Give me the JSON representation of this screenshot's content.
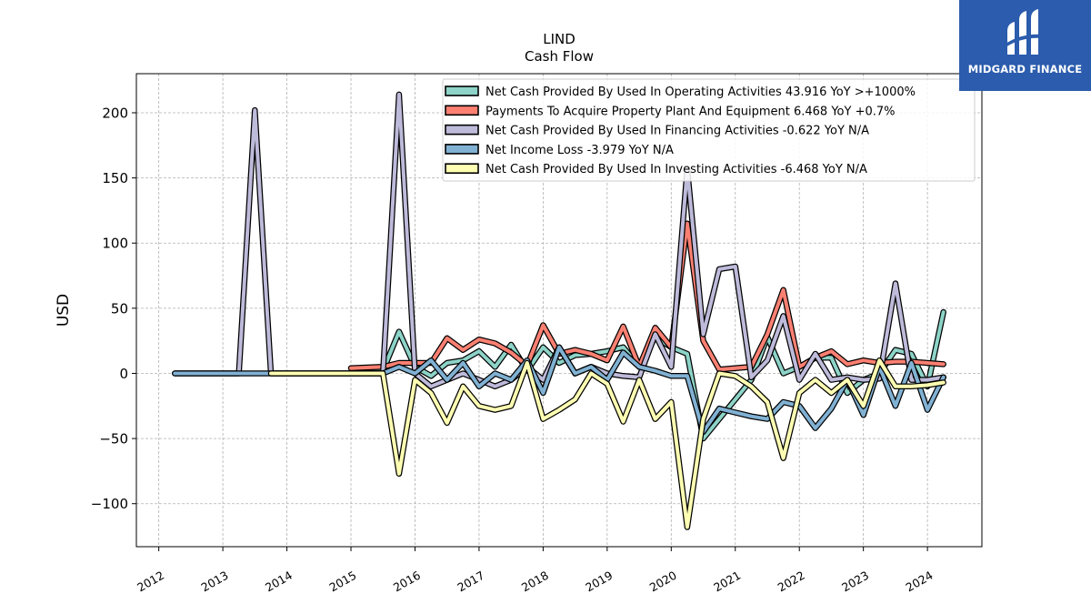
{
  "header": {
    "ticker": "LIND",
    "subtitle": "Cash Flow"
  },
  "brand": {
    "name": "MIDGARD FINANCE",
    "bg_color": "#2b5cad"
  },
  "chart_data": {
    "type": "line",
    "title": "LIND",
    "subtitle": "Cash Flow",
    "ylabel": "USD",
    "xlabel": "",
    "ylim": [
      -133,
      230
    ],
    "xlim": [
      2011.65,
      2024.85
    ],
    "yticks": [
      -100,
      -50,
      0,
      50,
      100,
      150,
      200
    ],
    "ytick_labels": [
      "−100",
      "−50",
      "0",
      "50",
      "100",
      "150",
      "200"
    ],
    "xticks": [
      2012,
      2013,
      2014,
      2015,
      2016,
      2017,
      2018,
      2019,
      2020,
      2021,
      2022,
      2023,
      2024
    ],
    "xtick_labels": [
      "2012",
      "2013",
      "2014",
      "2015",
      "2016",
      "2017",
      "2018",
      "2019",
      "2020",
      "2021",
      "2022",
      "2023",
      "2024"
    ],
    "grid": true,
    "legend_position": "top-right",
    "series": [
      {
        "name": "Net Cash Provided By Used In Operating Activities",
        "legend_label": "Net Cash Provided By Used In Operating Activities  43.916 YoY >+1000%",
        "color": "#8dd3c7",
        "x": [
          2015.0,
          2015.5,
          2015.75,
          2016.0,
          2016.25,
          2016.5,
          2016.75,
          2017.0,
          2017.25,
          2017.5,
          2017.75,
          2018.0,
          2018.25,
          2018.5,
          2018.75,
          2019.0,
          2019.25,
          2019.5,
          2019.75,
          2020.0,
          2020.25,
          2020.5,
          2020.75,
          2021.0,
          2021.25,
          2021.5,
          2021.75,
          2022.0,
          2022.25,
          2022.5,
          2022.75,
          2023.0,
          2023.25,
          2023.5,
          2023.75,
          2024.0,
          2024.25
        ],
        "y": [
          0,
          2,
          32,
          5,
          -2,
          8,
          10,
          17,
          5,
          22,
          2,
          20,
          8,
          14,
          15,
          17,
          20,
          5,
          28,
          20,
          15,
          -50,
          -35,
          -20,
          -5,
          28,
          0,
          5,
          12,
          12,
          -15,
          -5,
          0,
          18,
          15,
          -10,
          47
        ]
      },
      {
        "name": "Payments To Acquire Property Plant And Equipment",
        "legend_label": "Payments To Acquire Property Plant And Equipment  6.468 YoY +0.7%",
        "color": "#fb8072",
        "x": [
          2015.0,
          2015.5,
          2015.75,
          2016.0,
          2016.25,
          2016.5,
          2016.75,
          2017.0,
          2017.25,
          2017.5,
          2017.75,
          2018.0,
          2018.25,
          2018.5,
          2018.75,
          2019.0,
          2019.25,
          2019.5,
          2019.75,
          2020.0,
          2020.25,
          2020.5,
          2020.75,
          2021.0,
          2021.25,
          2021.5,
          2021.75,
          2022.0,
          2022.25,
          2022.5,
          2022.75,
          2023.0,
          2023.25,
          2023.5,
          2023.75,
          2024.0,
          2024.25
        ],
        "y": [
          4,
          5,
          8,
          8,
          8,
          27,
          18,
          26,
          23,
          16,
          6,
          37,
          15,
          18,
          15,
          10,
          36,
          5,
          35,
          20,
          115,
          25,
          3,
          4,
          5,
          30,
          64,
          5,
          12,
          17,
          7,
          10,
          8,
          9,
          9,
          8,
          7
        ]
      },
      {
        "name": "Net Cash Provided By Used In Financing Activities",
        "legend_label": "Net Cash Provided By Used In Financing Activities  -0.622 YoY N/A",
        "color": "#bebada",
        "x": [
          2012.25,
          2013.0,
          2013.25,
          2013.5,
          2013.75,
          2014.25,
          2015.0,
          2015.5,
          2015.75,
          2016.0,
          2016.25,
          2016.5,
          2016.75,
          2017.0,
          2017.25,
          2017.5,
          2017.75,
          2018.0,
          2018.25,
          2018.5,
          2018.75,
          2019.0,
          2019.25,
          2019.5,
          2019.75,
          2020.0,
          2020.25,
          2020.5,
          2020.75,
          2021.0,
          2021.25,
          2021.5,
          2021.75,
          2022.0,
          2022.25,
          2022.5,
          2022.75,
          2023.0,
          2023.25,
          2023.5,
          2023.75,
          2024.0,
          2024.25
        ],
        "y": [
          0,
          0,
          0,
          202,
          0,
          0,
          0,
          0,
          214,
          0,
          -10,
          -5,
          0,
          -5,
          -10,
          -5,
          5,
          -5,
          20,
          0,
          5,
          0,
          -2,
          -3,
          30,
          5,
          157,
          30,
          80,
          82,
          -3,
          10,
          44,
          -5,
          15,
          -5,
          -3,
          -5,
          -4,
          69,
          -5,
          -5,
          -3
        ]
      },
      {
        "name": "Net Income Loss",
        "legend_label": "Net Income Loss  -3.979 YoY N/A",
        "color": "#80b1d3",
        "x": [
          2012.25,
          2013.0,
          2014.0,
          2015.0,
          2015.5,
          2015.75,
          2016.0,
          2016.25,
          2016.5,
          2016.75,
          2017.0,
          2017.25,
          2017.5,
          2017.75,
          2018.0,
          2018.25,
          2018.5,
          2018.75,
          2019.0,
          2019.25,
          2019.5,
          2019.75,
          2020.0,
          2020.25,
          2020.5,
          2020.75,
          2021.0,
          2021.25,
          2021.5,
          2021.75,
          2022.0,
          2022.25,
          2022.5,
          2022.75,
          2023.0,
          2023.25,
          2023.5,
          2023.75,
          2024.0,
          2024.25
        ],
        "y": [
          0,
          0,
          0,
          0,
          0,
          5,
          0,
          10,
          -5,
          8,
          -10,
          0,
          -5,
          10,
          -15,
          20,
          0,
          5,
          -5,
          16,
          5,
          2,
          -2,
          -2,
          -45,
          -27,
          -30,
          -33,
          -35,
          -22,
          -25,
          -42,
          -27,
          -5,
          -32,
          5,
          -25,
          8,
          -28,
          -3
        ]
      },
      {
        "name": "Net Cash Provided By Used In Investing Activities",
        "legend_label": "Net Cash Provided By Used In Investing Activities  -6.468 YoY N/A",
        "color": "#ffffb3",
        "x": [
          2013.75,
          2014.0,
          2015.0,
          2015.5,
          2015.75,
          2016.0,
          2016.25,
          2016.5,
          2016.75,
          2017.0,
          2017.25,
          2017.5,
          2017.75,
          2018.0,
          2018.25,
          2018.5,
          2018.75,
          2019.0,
          2019.25,
          2019.5,
          2019.75,
          2020.0,
          2020.25,
          2020.5,
          2020.75,
          2021.0,
          2021.25,
          2021.5,
          2021.75,
          2022.0,
          2022.25,
          2022.5,
          2022.75,
          2023.0,
          2023.25,
          2023.5,
          2023.75,
          2024.0,
          2024.25
        ],
        "y": [
          0,
          0,
          0,
          0,
          -77,
          -5,
          -15,
          -38,
          -10,
          -25,
          -28,
          -25,
          8,
          -35,
          -28,
          -20,
          0,
          -8,
          -37,
          -5,
          -35,
          -22,
          -118,
          -35,
          0,
          -2,
          -10,
          -22,
          -65,
          -15,
          -5,
          -15,
          -5,
          -25,
          10,
          -10,
          -10,
          -9,
          -7
        ]
      }
    ]
  }
}
